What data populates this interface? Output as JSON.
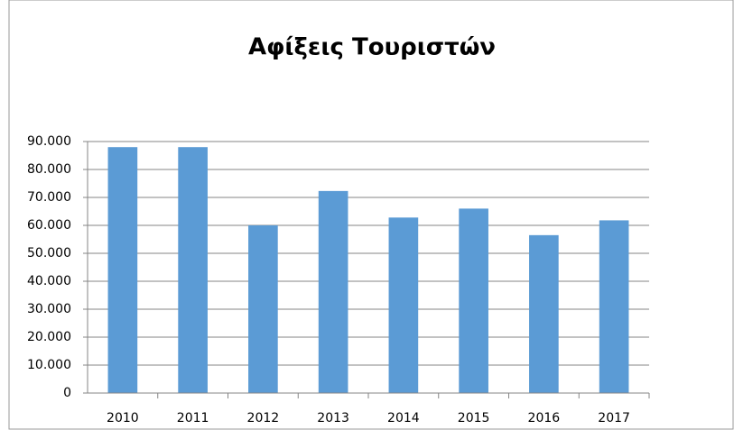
{
  "chart_data": {
    "type": "bar",
    "title": "Αφίξεις Τουριστών",
    "categories": [
      "2010",
      "2011",
      "2012",
      "2013",
      "2014",
      "2015",
      "2016",
      "2017"
    ],
    "values": [
      88000,
      88000,
      60000,
      72300,
      62800,
      66000,
      56500,
      61800
    ],
    "color": "#5b9bd5",
    "ylim": [
      0,
      90000
    ],
    "yticks": [
      0,
      {
        "value": 10000,
        "label": "10.000"
      },
      {
        "value": 20000,
        "label": "20.000"
      },
      {
        "value": 30000,
        "label": "30.000"
      },
      {
        "value": 40000,
        "label": "40.000"
      },
      {
        "value": 50000,
        "label": "50.000"
      },
      {
        "value": 60000,
        "label": "60.000"
      },
      {
        "value": 70000,
        "label": "70.000"
      },
      {
        "value": 80000,
        "label": "80.000"
      },
      {
        "value": 90000,
        "label": "90.000"
      }
    ],
    "grid": true
  }
}
